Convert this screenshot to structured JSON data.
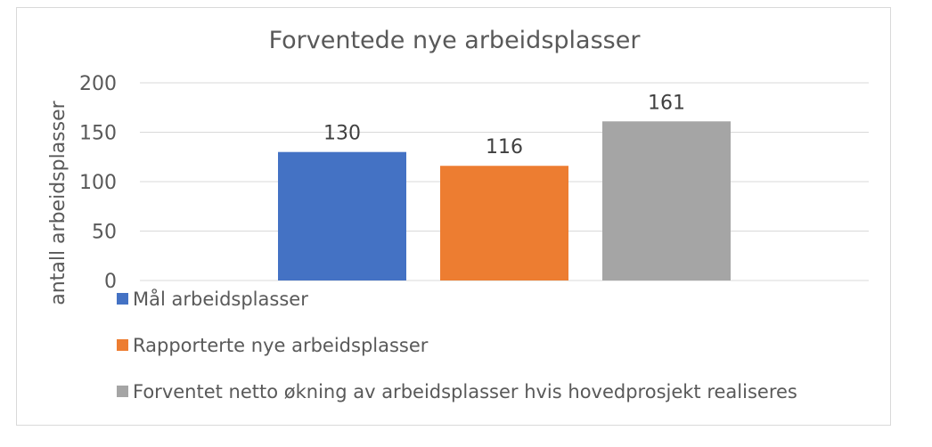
{
  "chart_data": {
    "type": "bar",
    "title": "Forventede nye arbeidsplasser",
    "ylabel": "antall arbeidsplasser",
    "xlabel": "",
    "ylim": [
      0,
      200
    ],
    "yticks": [
      0,
      50,
      100,
      150,
      200
    ],
    "grid": true,
    "legend_position": "bottom",
    "series": [
      {
        "name": "Mål arbeidsplasser",
        "values": [
          130
        ],
        "color": "#4472C4"
      },
      {
        "name": "Rapporterte nye arbeidsplasser",
        "values": [
          116
        ],
        "color": "#ED7D31"
      },
      {
        "name": "Forventet netto økning av arbeidsplasser hvis hovedprosjekt realiseres",
        "values": [
          161
        ],
        "color": "#A5A5A5"
      }
    ]
  }
}
